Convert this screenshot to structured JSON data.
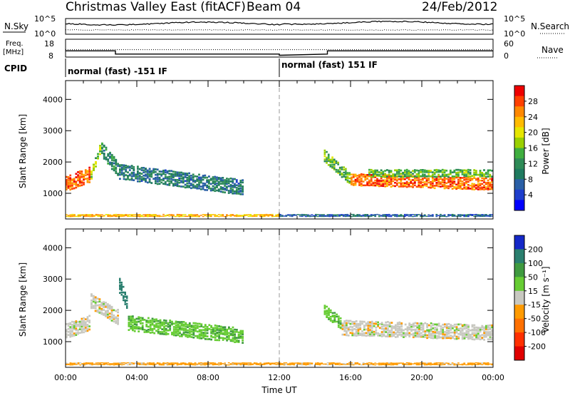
{
  "header": {
    "title": "Christmas Valley East (fitACF)",
    "beam": "Beam 04",
    "date": "24/Feb/2012"
  },
  "noise_panel": {
    "left_label": "N.Sky",
    "left_ticks": [
      "10^5",
      "10^0"
    ],
    "right_ticks": [
      "10^5",
      "10^0"
    ],
    "right_label": "N.Search"
  },
  "freq_panel": {
    "left_label_1": "Freq.",
    "left_label_2": "[MHz]",
    "left_ticks": [
      "18",
      "8"
    ],
    "right_ticks": [
      "60",
      "0"
    ],
    "right_label": "Nave"
  },
  "cpid": {
    "label": "CPID",
    "segment_1": "normal (fast) -151 IF",
    "segment_2": "normal (fast) 151 IF"
  },
  "axes": {
    "xlabel": "Time UT",
    "ylabel": "Slant Range [km]",
    "xticks": [
      "00:00",
      "04:00",
      "08:00",
      "12:00",
      "16:00",
      "20:00",
      "00:00"
    ],
    "yticks": [
      "1000",
      "2000",
      "3000",
      "4000"
    ]
  },
  "power_scale": {
    "label": "Power [dB]",
    "ticks": [
      "28",
      "24",
      "20",
      "16",
      "12",
      "8",
      "4"
    ],
    "colors": [
      "#ee0000",
      "#ff4000",
      "#ff8800",
      "#ffbb00",
      "#e6e600",
      "#9ad000",
      "#3fae3f",
      "#2e8b57",
      "#1f7a5f",
      "#2a5fa6",
      "#1e3ecc",
      "#0000ff"
    ]
  },
  "velocity_scale": {
    "label": "Velocity [m s⁻¹]",
    "ticks": [
      "200",
      "100",
      "50",
      "15",
      "-15",
      "-50",
      "-100",
      "-200"
    ],
    "colors": [
      "#1428c8",
      "#2a7f6f",
      "#3f9a3f",
      "#66cc33",
      "#c8c8c0",
      "#ff9a00",
      "#ff7000",
      "#ff3000",
      "#e00000"
    ]
  },
  "chart_data": {
    "type": "heatmap",
    "xlabel": "Time UT",
    "ylabel": "Slant Range [km]",
    "xlim_hours": [
      0,
      24
    ],
    "ylim_km": [
      180,
      4600
    ],
    "panels": [
      {
        "name": "power",
        "quantity": "Power [dB]",
        "bands": [
          {
            "t0": 0.0,
            "t1": 1.4,
            "r_center": [
              1300,
              1600
            ],
            "width": 500,
            "value": 26
          },
          {
            "t0": 1.4,
            "t1": 2.0,
            "r_center": [
              1600,
              2400
            ],
            "width": 300,
            "value": 16
          },
          {
            "t0": 2.0,
            "t1": 3.0,
            "r_center": [
              2400,
              1800
            ],
            "width": 500,
            "value": 10
          },
          {
            "t0": 3.0,
            "t1": 10.0,
            "r_center": [
              1700,
              1200
            ],
            "width": 500,
            "value": 8
          },
          {
            "t0": 14.5,
            "t1": 16.0,
            "r_center": [
              2200,
              1500
            ],
            "width": 400,
            "value": 14
          },
          {
            "t0": 16.0,
            "t1": 24.0,
            "r_center": [
              1450,
              1300
            ],
            "width": 400,
            "value": 26
          },
          {
            "t0": 17.0,
            "t1": 24.0,
            "r_center": [
              1650,
              1650
            ],
            "width": 250,
            "value": 14
          },
          {
            "t0": 0.0,
            "t1": 12.0,
            "r_center": [
              300,
              300
            ],
            "width": 80,
            "value": 22
          },
          {
            "t0": 12.0,
            "t1": 24.0,
            "r_center": [
              300,
              300
            ],
            "width": 80,
            "value": 6
          }
        ]
      },
      {
        "name": "velocity",
        "quantity": "Velocity [m s⁻¹]",
        "bands": [
          {
            "t0": 0.0,
            "t1": 1.4,
            "r_center": [
              1350,
              1600
            ],
            "width": 500,
            "value": 0
          },
          {
            "t0": 1.4,
            "t1": 3.0,
            "r_center": [
              2300,
              1800
            ],
            "width": 500,
            "value": 0
          },
          {
            "t0": 3.0,
            "t1": 3.5,
            "r_center": [
              2800,
              2300
            ],
            "width": 500,
            "value": 180
          },
          {
            "t0": 3.5,
            "t1": 10.0,
            "r_center": [
              1600,
              1200
            ],
            "width": 500,
            "value": 40
          },
          {
            "t0": 14.5,
            "t1": 15.5,
            "r_center": [
              2000,
              1600
            ],
            "width": 400,
            "value": 40
          },
          {
            "t0": 15.5,
            "t1": 24.0,
            "r_center": [
              1450,
              1300
            ],
            "width": 500,
            "value": 0
          },
          {
            "t0": 0.0,
            "t1": 24.0,
            "r_center": [
              300,
              300
            ],
            "width": 80,
            "value": -30
          }
        ]
      }
    ],
    "noise_series": {
      "sky_level": "low",
      "search_level": "low"
    },
    "frequency_series": {
      "points": [
        [
          0,
          11.5
        ],
        [
          2.8,
          11.5
        ],
        [
          2.8,
          9.7
        ],
        [
          12,
          9.7
        ],
        [
          12,
          9.0
        ],
        [
          14.7,
          9.7
        ],
        [
          14.7,
          11.5
        ],
        [
          24,
          11.5
        ]
      ],
      "ylim": [
        8,
        18
      ]
    },
    "nave_series": {
      "value": 25,
      "ylim": [
        0,
        60
      ]
    }
  }
}
